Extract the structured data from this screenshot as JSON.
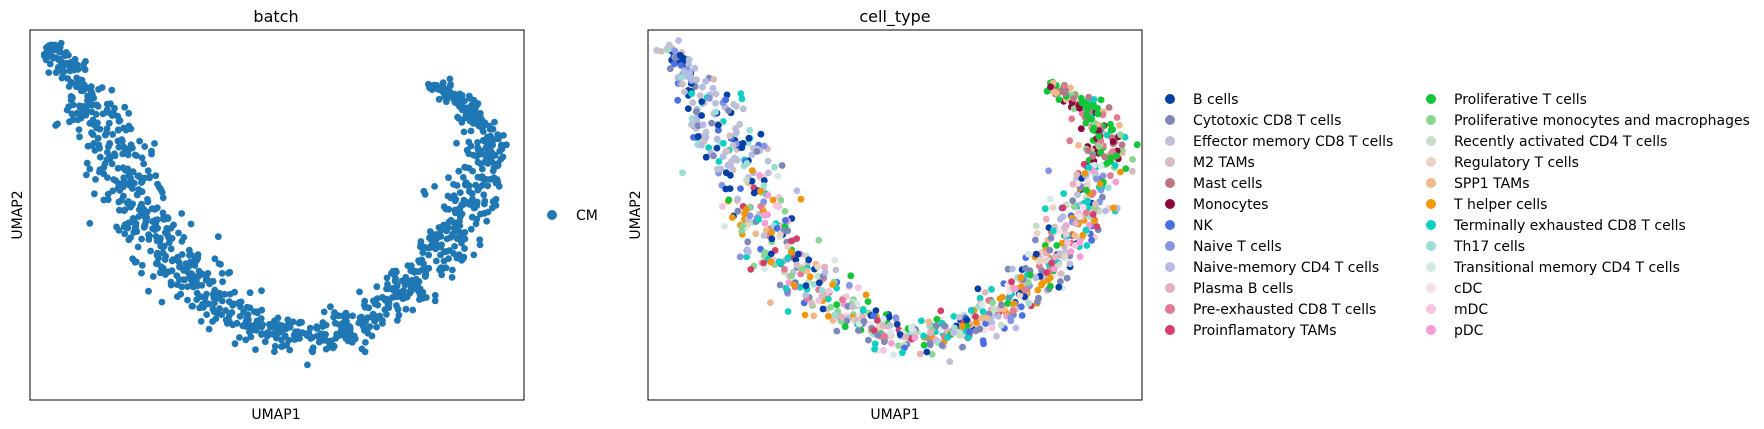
{
  "chart_data": [
    {
      "type": "scatter",
      "title": "batch",
      "xlabel": "UMAP1",
      "ylabel": "UMAP2",
      "grid": false,
      "legend_position": "right",
      "series": [
        {
          "name": "CM",
          "color": "#1f77b4"
        }
      ],
      "point_count": 1100,
      "shape": "U-shaped manifold: left arm from top-left corner down to bottom-center, right arm rising to the upper-right"
    },
    {
      "type": "scatter",
      "title": "cell_type",
      "xlabel": "UMAP1",
      "ylabel": "UMAP2",
      "grid": false,
      "legend_position": "right",
      "legend_columns": 2,
      "series": [
        {
          "name": "B cells",
          "color": "#023fa5"
        },
        {
          "name": "Cytotoxic CD8 T cells",
          "color": "#7d87b9"
        },
        {
          "name": "Effector memory CD8 T cells",
          "color": "#bec1d4"
        },
        {
          "name": "M2 TAMs",
          "color": "#d6bcc0"
        },
        {
          "name": "Mast cells",
          "color": "#bb7784"
        },
        {
          "name": "Monocytes",
          "color": "#8e063b"
        },
        {
          "name": "NK",
          "color": "#4a6fe3"
        },
        {
          "name": "Naive T cells",
          "color": "#8595e1"
        },
        {
          "name": "Naive-memory CD4 T cells",
          "color": "#b5bbe3"
        },
        {
          "name": "Plasma B cells",
          "color": "#e6afb9"
        },
        {
          "name": "Pre-exhausted CD8 T cells",
          "color": "#e07b91"
        },
        {
          "name": "Proinflamatory TAMs",
          "color": "#d33f6a"
        },
        {
          "name": "Proliferative T cells",
          "color": "#11c638"
        },
        {
          "name": "Proliferative monocytes and macrophages",
          "color": "#8dd593"
        },
        {
          "name": "Recently activated CD4 T cells",
          "color": "#c6dec7"
        },
        {
          "name": "Regulatory T cells",
          "color": "#ead3c6"
        },
        {
          "name": "SPP1 TAMs",
          "color": "#f0b98d"
        },
        {
          "name": "T helper cells",
          "color": "#ef9708"
        },
        {
          "name": "Terminally exhausted CD8 T cells",
          "color": "#0fcfc0"
        },
        {
          "name": "Th17 cells",
          "color": "#9cded6"
        },
        {
          "name": "Transitional memory CD4 T cells",
          "color": "#d5eae7"
        },
        {
          "name": "cDC",
          "color": "#f3e1eb"
        },
        {
          "name": "mDC",
          "color": "#f6c4e1"
        },
        {
          "name": "pDC",
          "color": "#f79cd4"
        }
      ],
      "point_count": 1100
    }
  ]
}
